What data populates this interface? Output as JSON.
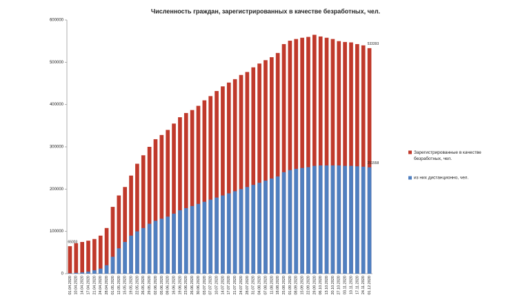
{
  "chart_data": {
    "type": "bar",
    "title": "Численность граждан, зарегистрированных в качестве безработных, чел.",
    "categories": [
      "01.04.2020",
      "10.04.2020",
      "14.04.2020",
      "17.04.2020",
      "21.04.2020",
      "24.04.2020",
      "28.04.2020",
      "01.05.2020",
      "12.05.2020",
      "15.05.2020",
      "19.05.2020",
      "22.05.2020",
      "26.05.2020",
      "29.05.2020",
      "02.06.2020",
      "05.06.2020",
      "09.06.2020",
      "16.06.2020",
      "19.06.2020",
      "23.06.2020",
      "26.06.2020",
      "30.06.2020",
      "03.07.2020",
      "07.07.2020",
      "10.07.2020",
      "14.07.2020",
      "17.07.2020",
      "21.07.2020",
      "24.07.2020",
      "28.07.2020",
      "31.07.2020",
      "04.08.2020",
      "07.08.2020",
      "11.08.2020",
      "18.08.2020",
      "25.08.2020",
      "01.09.2020",
      "08.09.2020",
      "15.09.2020",
      "22.09.2020",
      "29.09.2020",
      "06.10.2020",
      "13.10.2020",
      "20.10.2020",
      "27.10.2020",
      "03.11.2020",
      "10.11.2020",
      "17.11.2020",
      "24.11.2020",
      "01.12.2020"
    ],
    "series": [
      {
        "name": "Зарегистрированные в качестве безработных, чел.",
        "color": "#c0392b",
        "values": [
          65003,
          72000,
          75000,
          78000,
          82000,
          90000,
          108000,
          158000,
          185000,
          205000,
          232000,
          260000,
          280000,
          300000,
          318000,
          328000,
          340000,
          355000,
          370000,
          380000,
          387000,
          397000,
          410000,
          420000,
          432000,
          443000,
          452000,
          460000,
          470000,
          477000,
          488000,
          497000,
          505000,
          512000,
          522000,
          543000,
          551000,
          555000,
          558000,
          560000,
          565000,
          561000,
          558000,
          555000,
          550000,
          548000,
          547000,
          543000,
          540000,
          533393
        ],
        "value_labels": [
          "65003",
          null,
          null,
          null,
          null,
          null,
          null,
          null,
          null,
          null,
          null,
          null,
          null,
          null,
          null,
          null,
          null,
          null,
          null,
          null,
          null,
          null,
          null,
          null,
          null,
          null,
          null,
          null,
          null,
          null,
          null,
          null,
          null,
          null,
          null,
          null,
          null,
          null,
          null,
          null,
          null,
          null,
          null,
          null,
          null,
          null,
          null,
          null,
          null,
          "533393"
        ]
      },
      {
        "name": "из них дистанционно, чел.",
        "color": "#4f7fc0",
        "values": [
          1000,
          2000,
          3000,
          5000,
          8000,
          12000,
          20000,
          40000,
          60000,
          75000,
          90000,
          100000,
          108000,
          118000,
          125000,
          130000,
          135000,
          142000,
          150000,
          155000,
          160000,
          165000,
          170000,
          175000,
          180000,
          185000,
          190000,
          195000,
          200000,
          205000,
          210000,
          215000,
          220000,
          225000,
          230000,
          240000,
          245000,
          248000,
          250000,
          252000,
          255000,
          256000,
          256000,
          256000,
          256000,
          255000,
          255000,
          254000,
          253000,
          251558
        ],
        "value_labels": [
          null,
          null,
          null,
          null,
          null,
          null,
          null,
          null,
          null,
          null,
          null,
          null,
          null,
          null,
          null,
          null,
          null,
          null,
          null,
          null,
          null,
          null,
          null,
          null,
          null,
          null,
          null,
          null,
          null,
          null,
          null,
          null,
          null,
          null,
          null,
          null,
          null,
          null,
          null,
          null,
          null,
          null,
          null,
          null,
          null,
          null,
          null,
          null,
          null,
          "251558"
        ]
      }
    ],
    "ylim": [
      0,
      600000
    ],
    "yticks": [
      0,
      100000,
      200000,
      300000,
      400000,
      500000,
      600000
    ],
    "legend": "right"
  }
}
